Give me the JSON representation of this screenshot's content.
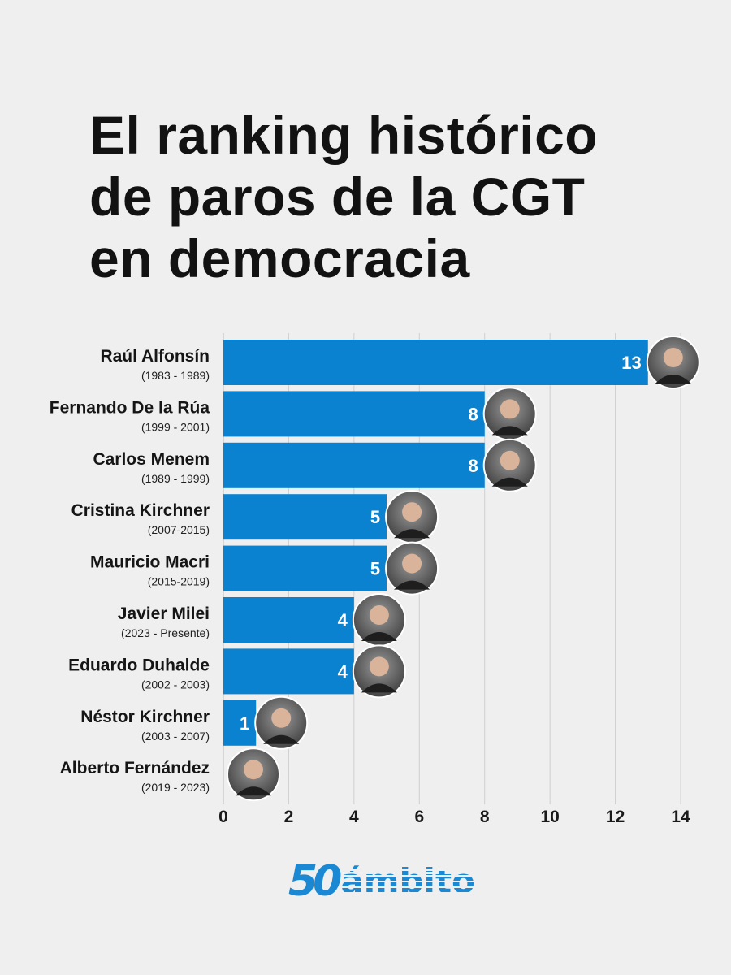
{
  "title": {
    "line1": "El ranking histórico",
    "line2": "de paros de la CGT",
    "line3": "en democracia"
  },
  "chart_data": {
    "type": "bar",
    "orientation": "horizontal",
    "categories": [
      "Raúl Alfonsín",
      "Fernando De la Rúa",
      "Carlos Menem",
      "Cristina Kirchner",
      "Mauricio Macri",
      "Javier Milei",
      "Eduardo Duhalde",
      "Néstor Kirchner",
      "Alberto Fernández"
    ],
    "periods": [
      "(1983 - 1989)",
      "(1999 - 2001)",
      "(1989 - 1999)",
      "(2007-2015)",
      "(2015-2019)",
      "(2023 - Presente)",
      "(2002 - 2003)",
      "(2003 - 2007)",
      "(2019 - 2023)"
    ],
    "values": [
      13,
      8,
      8,
      5,
      5,
      4,
      4,
      1,
      0
    ],
    "data_labels": [
      "13",
      "8",
      "8",
      "5",
      "5",
      "4",
      "4",
      "1",
      ""
    ],
    "xlim": [
      0,
      14
    ],
    "xticks": [
      "0",
      "2",
      "4",
      "6",
      "8",
      "10",
      "12",
      "14"
    ],
    "grid": "vertical",
    "bar_color": "#0a82d0",
    "label_color": "#ffffff",
    "avatar_icon": "person-portrait-icon"
  },
  "logo": {
    "number": "50",
    "word": "ámbito",
    "color": "#1a88d2"
  }
}
